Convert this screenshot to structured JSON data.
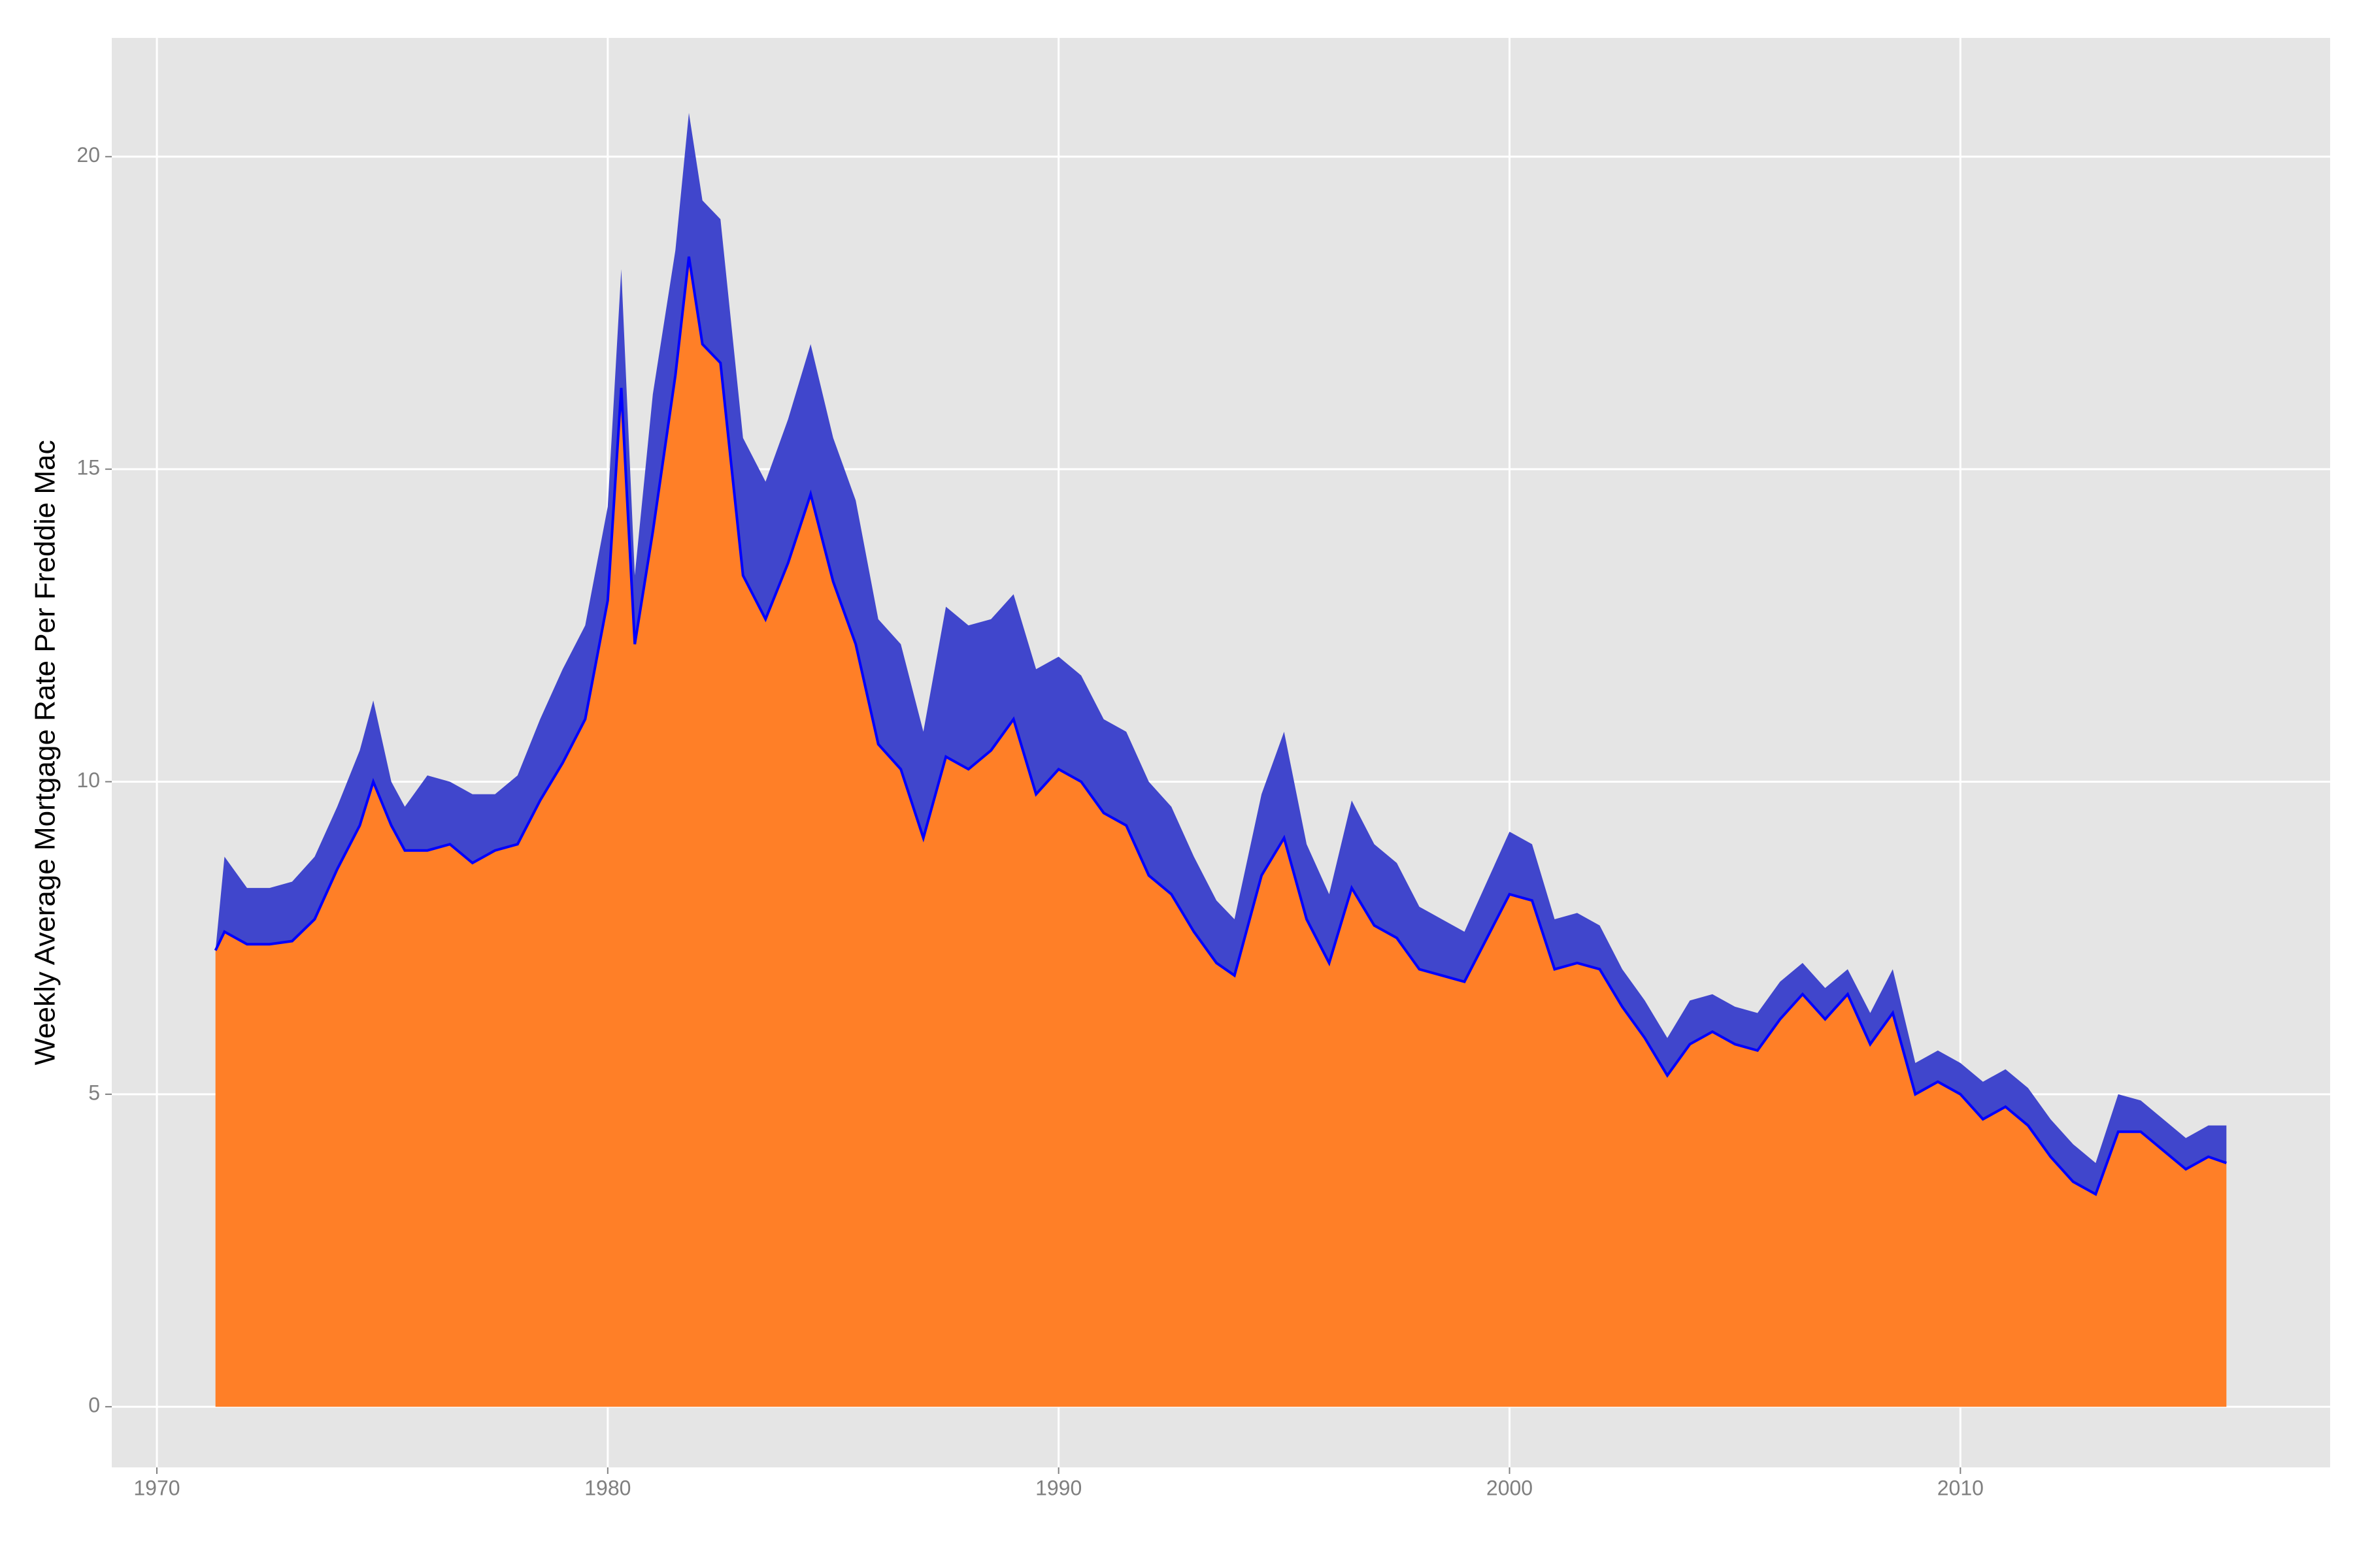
{
  "chart_data": {
    "type": "area",
    "ylabel": "Weekly Average Mortgage Rate Per Freddie Mac",
    "x": [
      1971.3,
      1971.5,
      1972,
      1972.5,
      1973,
      1973.5,
      1974,
      1974.5,
      1974.8,
      1975.2,
      1975.5,
      1976,
      1976.5,
      1977,
      1977.5,
      1978,
      1978.5,
      1979,
      1979.5,
      1980,
      1980.3,
      1980.6,
      1981,
      1981.5,
      1981.8,
      1982.1,
      1982.5,
      1983,
      1983.5,
      1984,
      1984.5,
      1985,
      1985.5,
      1986,
      1986.5,
      1987,
      1987.5,
      1988,
      1988.5,
      1989,
      1989.5,
      1990,
      1990.5,
      1991,
      1991.5,
      1992,
      1992.5,
      1993,
      1993.5,
      1993.9,
      1994.5,
      1995,
      1995.5,
      1996,
      1996.5,
      1997,
      1997.5,
      1998,
      1998.5,
      1999,
      1999.5,
      2000,
      2000.5,
      2001,
      2001.5,
      2002,
      2002.5,
      2003,
      2003.5,
      2004,
      2004.5,
      2005,
      2005.5,
      2006,
      2006.5,
      2007,
      2007.5,
      2008,
      2008.5,
      2009,
      2009.5,
      2010,
      2010.5,
      2011,
      2011.5,
      2012,
      2012.5,
      2013,
      2013.5,
      2014,
      2014.5,
      2015,
      2015.5,
      2015.9
    ],
    "series": [
      {
        "color": "#ff7f27",
        "line_color": "#0000ff",
        "values": [
          7.3,
          7.6,
          7.4,
          7.4,
          7.45,
          7.8,
          8.6,
          9.3,
          10.0,
          9.3,
          8.9,
          8.9,
          9.0,
          8.7,
          8.9,
          9.0,
          9.7,
          10.3,
          11.0,
          12.9,
          16.3,
          12.2,
          14.0,
          16.5,
          18.4,
          17.0,
          16.7,
          13.3,
          12.6,
          13.5,
          14.6,
          13.2,
          12.2,
          10.6,
          10.2,
          9.1,
          10.4,
          10.2,
          10.5,
          11.0,
          9.8,
          10.2,
          10.0,
          9.5,
          9.3,
          8.5,
          8.2,
          7.6,
          7.1,
          6.9,
          8.5,
          9.1,
          7.8,
          7.1,
          8.3,
          7.7,
          7.5,
          7.0,
          6.9,
          6.8,
          7.5,
          8.2,
          8.1,
          7.0,
          7.1,
          7.0,
          6.4,
          5.9,
          5.3,
          5.8,
          6.0,
          5.8,
          5.7,
          6.2,
          6.6,
          6.2,
          6.6,
          5.8,
          6.3,
          5.0,
          5.2,
          5.0,
          4.6,
          4.8,
          4.5,
          4.0,
          3.6,
          3.4,
          4.4,
          4.4,
          4.1,
          3.8,
          4.0,
          3.9
        ]
      },
      {
        "color": "#4046cc",
        "values": [
          7.3,
          8.8,
          8.3,
          8.3,
          8.4,
          8.8,
          9.6,
          10.5,
          11.3,
          10.0,
          9.6,
          10.1,
          10.0,
          9.8,
          9.8,
          10.1,
          11.0,
          11.8,
          12.5,
          14.4,
          18.2,
          13.3,
          16.2,
          18.5,
          20.7,
          19.3,
          19.0,
          15.5,
          14.8,
          15.8,
          17.0,
          15.5,
          14.5,
          12.6,
          12.2,
          10.8,
          12.8,
          12.5,
          12.6,
          13.0,
          11.8,
          12.0,
          11.7,
          11.0,
          10.8,
          10.0,
          9.6,
          8.8,
          8.1,
          7.8,
          9.8,
          10.8,
          9.0,
          8.2,
          9.7,
          9.0,
          8.7,
          8.0,
          7.8,
          7.6,
          8.4,
          9.2,
          9.0,
          7.8,
          7.9,
          7.7,
          7.0,
          6.5,
          5.9,
          6.5,
          6.6,
          6.4,
          6.3,
          6.8,
          7.1,
          6.7,
          7.0,
          6.3,
          7.0,
          5.5,
          5.7,
          5.5,
          5.2,
          5.4,
          5.1,
          4.6,
          4.2,
          3.9,
          5.0,
          4.9,
          4.6,
          4.3,
          4.5,
          4.5
        ]
      }
    ],
    "xlim": [
      1969,
      2018.2
    ],
    "ylim": [
      -0.97,
      21.9
    ],
    "xticks": [
      1970,
      1980,
      1990,
      2000,
      2010
    ],
    "yticks": [
      0,
      5,
      10,
      15,
      20
    ],
    "grid": true
  }
}
